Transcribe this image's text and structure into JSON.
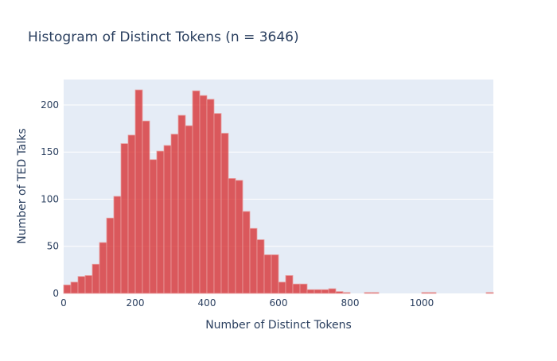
{
  "chart_data": {
    "type": "bar",
    "title": "Histogram of Distinct Tokens (n = 3646)",
    "xlabel": "Number of Distinct Tokens",
    "ylabel": "Number of TED Talks",
    "xlim": [
      0,
      1200
    ],
    "ylim": [
      0,
      227
    ],
    "bin_width": 20,
    "x_ticks": [
      0,
      200,
      400,
      600,
      800,
      1000
    ],
    "y_ticks": [
      0,
      50,
      100,
      150,
      200
    ],
    "grid": true,
    "bin_starts": [
      0,
      20,
      40,
      60,
      80,
      100,
      120,
      140,
      160,
      180,
      200,
      220,
      240,
      260,
      280,
      300,
      320,
      340,
      360,
      380,
      400,
      420,
      440,
      460,
      480,
      500,
      520,
      540,
      560,
      580,
      600,
      620,
      640,
      660,
      680,
      700,
      720,
      740,
      760,
      780,
      800,
      820,
      840,
      860,
      880,
      900,
      920,
      940,
      960,
      980,
      1000,
      1020,
      1040,
      1060,
      1080,
      1100,
      1120,
      1140,
      1160,
      1180
    ],
    "values": [
      9,
      12,
      18,
      19,
      31,
      54,
      80,
      103,
      159,
      168,
      216,
      183,
      142,
      151,
      157,
      169,
      189,
      178,
      215,
      210,
      206,
      191,
      170,
      122,
      120,
      87,
      69,
      57,
      41,
      41,
      12,
      19,
      10,
      10,
      4,
      4,
      4,
      5,
      2,
      1,
      0,
      0,
      1,
      1,
      0,
      0,
      0,
      0,
      0,
      0,
      1,
      1,
      0,
      0,
      0,
      0,
      0,
      0,
      0,
      1
    ],
    "colors": {
      "bar": "#d62728",
      "plot_bg": "#e5ecf6",
      "grid": "#ffffff",
      "text": "#2a3f5f"
    }
  }
}
